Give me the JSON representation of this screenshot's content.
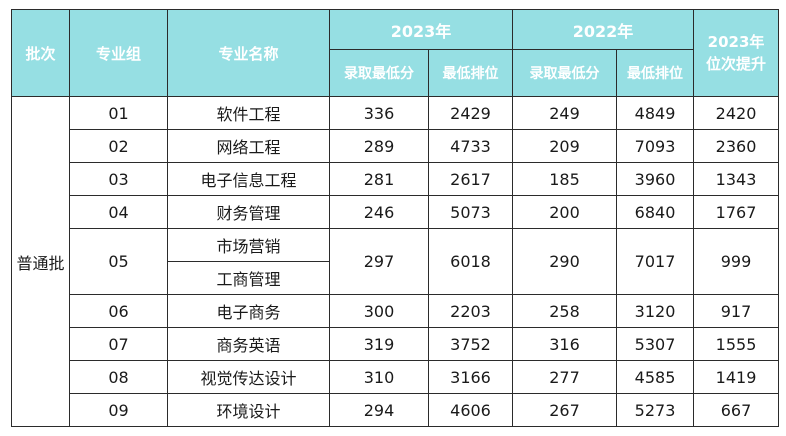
{
  "headers": {
    "batch": "批次",
    "group": "专业组",
    "major": "专业名称",
    "y2023": "2023年",
    "y2022": "2022年",
    "min_score": "录取最低分",
    "min_rank": "最低排位",
    "rise_line1": "2023年",
    "rise_line2": "位次提升"
  },
  "batch_value": "普通批",
  "rows": [
    {
      "group": "01",
      "major": "软件工程",
      "s23": "336",
      "r23": "2429",
      "s22": "249",
      "r22": "4849",
      "rise": "2420"
    },
    {
      "group": "02",
      "major": "网络工程",
      "s23": "289",
      "r23": "4733",
      "s22": "209",
      "r22": "7093",
      "rise": "2360"
    },
    {
      "group": "03",
      "major": "电子信息工程",
      "s23": "281",
      "r23": "2617",
      "s22": "185",
      "r22": "3960",
      "rise": "1343"
    },
    {
      "group": "04",
      "major": "财务管理",
      "s23": "246",
      "r23": "5073",
      "s22": "200",
      "r22": "6840",
      "rise": "1767"
    },
    {
      "group": "05",
      "major": "市场营销",
      "major2": "工商管理",
      "s23": "297",
      "r23": "6018",
      "s22": "290",
      "r22": "7017",
      "rise": "999"
    },
    {
      "group": "06",
      "major": "电子商务",
      "s23": "300",
      "r23": "2203",
      "s22": "258",
      "r22": "3120",
      "rise": "917"
    },
    {
      "group": "07",
      "major": "商务英语",
      "s23": "319",
      "r23": "3752",
      "s22": "316",
      "r22": "5307",
      "rise": "1555"
    },
    {
      "group": "08",
      "major": "视觉传达设计",
      "s23": "310",
      "r23": "3166",
      "s22": "277",
      "r22": "4585",
      "rise": "1419"
    },
    {
      "group": "09",
      "major": "环境设计",
      "s23": "294",
      "r23": "4606",
      "s22": "267",
      "r22": "5273",
      "rise": "667"
    }
  ]
}
